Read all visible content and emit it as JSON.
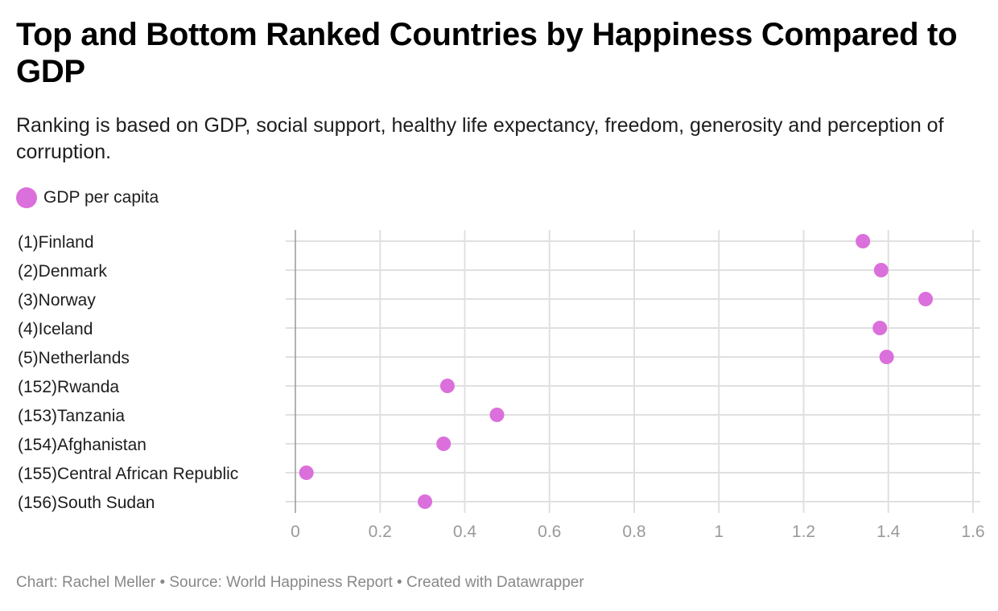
{
  "colors": {
    "dot": "#db6fdb",
    "grid": "#e0e0e0",
    "zero_axis": "#999999"
  },
  "footer": {
    "text": "Chart: Rachel Meller • Source: World Happiness Report • Created with Datawrapper"
  },
  "chart_data": {
    "type": "scatter",
    "title": "Top and Bottom Ranked Countries by Happiness Compared to GDP",
    "subtitle": "Ranking is based on GDP, social support, healthy life expectancy, freedom, generosity and perception of corruption.",
    "legend": {
      "placement": "top-left",
      "entries": [
        "GDP per capita"
      ]
    },
    "categories": [
      "(1)Finland",
      "(2)Denmark",
      "(3)Norway",
      "(4)Iceland",
      "(5)Netherlands",
      "(152)Rwanda",
      "(153)Tanzania",
      "(154)Afghanistan",
      "(155)Central African Republic",
      "(156)South Sudan"
    ],
    "series": [
      {
        "name": "GDP per capita",
        "values": [
          1.34,
          1.383,
          1.488,
          1.38,
          1.396,
          0.359,
          0.476,
          0.35,
          0.026,
          0.306
        ]
      }
    ],
    "x_ticks": [
      0,
      0.2,
      0.4,
      0.6,
      0.8,
      1,
      1.2,
      1.4,
      1.6
    ],
    "x_tick_labels": [
      "0",
      "0.2",
      "0.4",
      "0.6",
      "0.8",
      "1",
      "1.2",
      "1.4",
      "1.6"
    ],
    "xlim": [
      0,
      1.6
    ],
    "xlabel": "",
    "ylabel": "",
    "grid": true
  }
}
